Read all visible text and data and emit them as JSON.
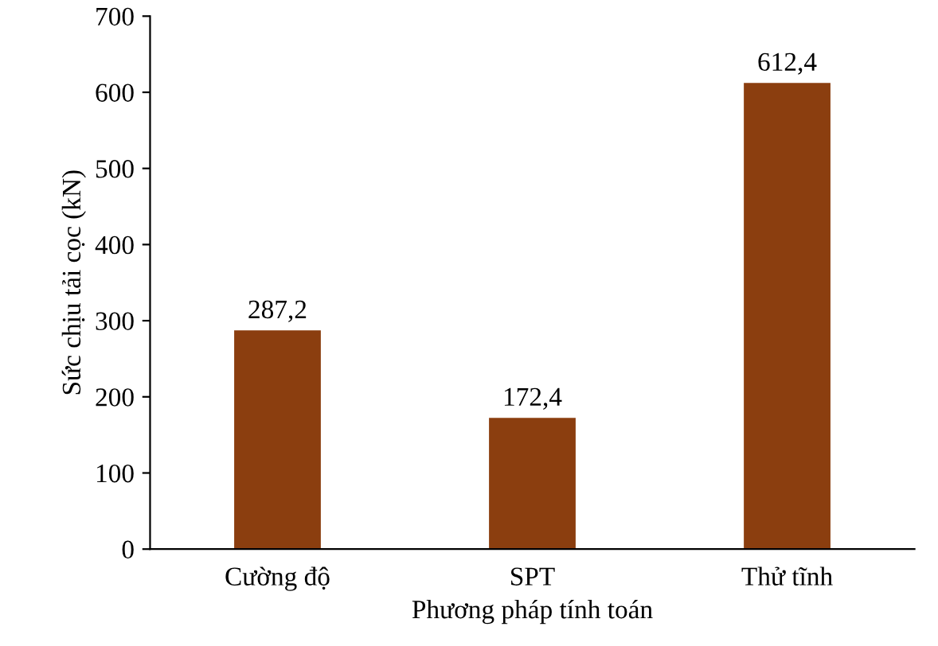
{
  "chart_data": {
    "type": "bar",
    "xlabel": "Phương pháp tính toán",
    "ylabel": "Sức chịu tải cọc (kN)",
    "categories": [
      "Cường độ",
      "SPT",
      "Thử tĩnh"
    ],
    "values": [
      287.2,
      172.4,
      612.4
    ],
    "value_labels": [
      "287,2",
      "172,4",
      "612,4"
    ],
    "color": "#8b3e0f",
    "ylim": [
      0,
      700
    ],
    "yticks": [
      0,
      100,
      200,
      300,
      400,
      500,
      600,
      700
    ],
    "grid": false
  }
}
